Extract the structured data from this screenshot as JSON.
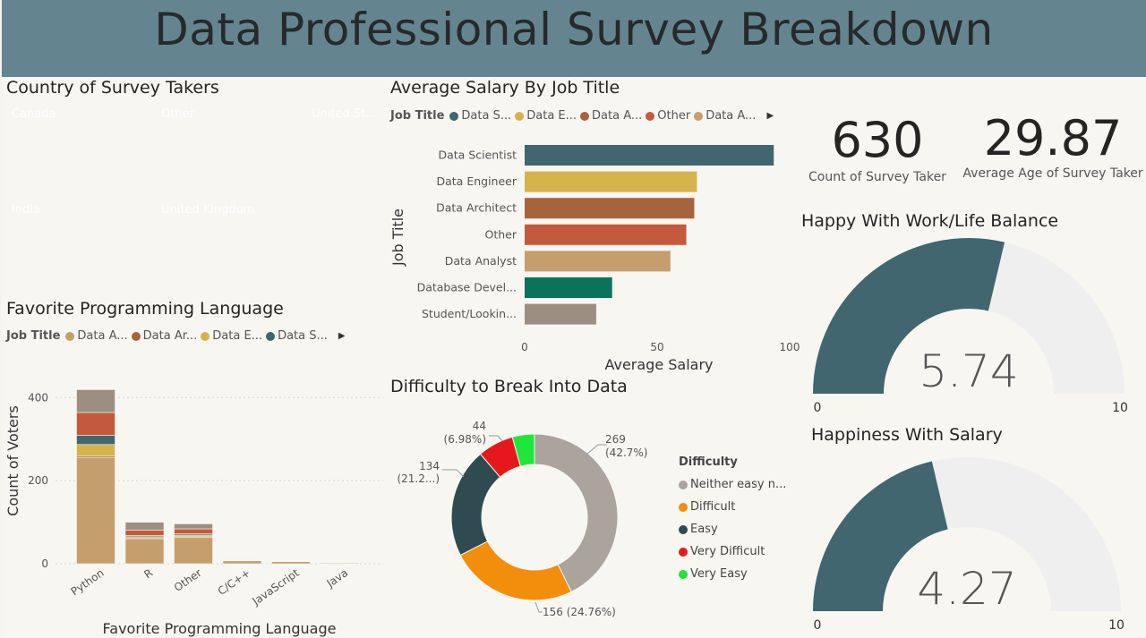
{
  "title": "Data Professional Survey Breakdown",
  "colors": {
    "header_bg": "#64858f",
    "data_scientist": "#41666f",
    "data_engineer": "#d4b34b",
    "data_architect": "#a6643e",
    "other": "#c45a3d",
    "data_analyst": "#c59e6e",
    "database_developer": "#0b7359",
    "student": "#9c8f82",
    "gauge_fill": "#41666f",
    "gauge_track": "#efefef"
  },
  "treemap": {
    "title": "Country of Survey Takers",
    "tiles": [
      {
        "label": "Canada",
        "color": "#41666f"
      },
      {
        "label": "Other",
        "color": "#a6643e"
      },
      {
        "label": "United St...",
        "color": "#c59e6e"
      },
      {
        "label": "India",
        "color": "#d4b34b"
      },
      {
        "label": "United Kingdom",
        "color": "#c45a3d"
      }
    ]
  },
  "salary_chart": {
    "title": "Average Salary By Job Title",
    "legend_title": "Job Title",
    "legend_items": [
      {
        "label": "Data S...",
        "color": "#41666f"
      },
      {
        "label": "Data E...",
        "color": "#d4b34b"
      },
      {
        "label": "Data A...",
        "color": "#a6643e"
      },
      {
        "label": "Other",
        "color": "#c45a3d"
      },
      {
        "label": "Data A...",
        "color": "#c59e6e"
      }
    ]
  },
  "language_chart": {
    "title": "Favorite Programming Language",
    "legend_title": "Job Title",
    "legend_items": [
      {
        "label": "Data A...",
        "color": "#c59e6e"
      },
      {
        "label": "Data Ar...",
        "color": "#a6643e"
      },
      {
        "label": "Data E...",
        "color": "#d4b34b"
      },
      {
        "label": "Data S...",
        "color": "#41666f"
      }
    ]
  },
  "difficulty_chart": {
    "title": "Difficulty to Break Into Data",
    "legend_title": "Difficulty",
    "legend_items": [
      {
        "label": "Neither easy n...",
        "color": "#aba39c"
      },
      {
        "label": "Difficult",
        "color": "#f28e0c"
      },
      {
        "label": "Easy",
        "color": "#2f4a51"
      },
      {
        "label": "Very Difficult",
        "color": "#e5191c"
      },
      {
        "label": "Very Easy",
        "color": "#1ee63a"
      }
    ]
  },
  "kpis": {
    "count": {
      "value": "630",
      "label": "Count of Survey Taker"
    },
    "age": {
      "value": "29.87",
      "label": "Average Age of Survey Taker"
    }
  },
  "gauges": {
    "worklife": {
      "title": "Happy With Work/Life Balance",
      "value": 5.74,
      "value_label": "5.74",
      "min_label": "0",
      "max_label": "10"
    },
    "salary": {
      "title": "Happiness With Salary",
      "value": 4.27,
      "value_label": "4.27",
      "min_label": "0",
      "max_label": "10"
    }
  },
  "chart_data": [
    {
      "type": "bar",
      "orientation": "horizontal",
      "title": "Average Salary By Job Title",
      "categories": [
        "Data Scientist",
        "Data Engineer",
        "Data Architect",
        "Other",
        "Data Analyst",
        "Database Devel...",
        "Student/Lookin..."
      ],
      "values": [
        94,
        65,
        64,
        61,
        55,
        33,
        27
      ],
      "colors": [
        "#41666f",
        "#d4b34b",
        "#a6643e",
        "#c45a3d",
        "#c59e6e",
        "#0b7359",
        "#9c8f82"
      ],
      "xlabel": "Average Salary",
      "ylabel": "Job Title",
      "xlim": [
        0,
        100
      ],
      "xticks": [
        "0",
        "50",
        "100"
      ]
    },
    {
      "type": "bar",
      "stacked": true,
      "title": "Favorite Programming Language",
      "categories": [
        "Python",
        "R",
        "Other",
        "C/C++",
        "JavaScript",
        "Java"
      ],
      "series": [
        {
          "name": "Data Analyst",
          "color": "#c59e6e",
          "values": [
            256,
            60,
            63,
            7,
            5,
            2
          ]
        },
        {
          "name": "Data Architect",
          "color": "#a6643e",
          "values": [
            3,
            2,
            2,
            0,
            0,
            0
          ]
        },
        {
          "name": "Data Engineer",
          "color": "#d4b34b",
          "values": [
            28,
            3,
            4,
            1,
            1,
            0
          ]
        },
        {
          "name": "Data Scientist",
          "color": "#41666f",
          "values": [
            22,
            3,
            3,
            0,
            0,
            0
          ]
        },
        {
          "name": "Other",
          "color": "#c45a3d",
          "values": [
            55,
            13,
            12,
            1,
            1,
            0
          ]
        },
        {
          "name": "Student/Looking",
          "color": "#9c8f82",
          "values": [
            55,
            19,
            12,
            1,
            0,
            1
          ]
        }
      ],
      "xlabel": "Favorite Programming Language",
      "ylabel": "Count of Voters",
      "ylim": [
        0,
        420
      ],
      "yticks": [
        0,
        200,
        400
      ]
    },
    {
      "type": "pie",
      "donut": true,
      "title": "Difficulty to Break Into Data",
      "categories": [
        "Neither easy nor difficult",
        "Difficult",
        "Easy",
        "Very Difficult",
        "Very Easy"
      ],
      "values": [
        269,
        156,
        134,
        44,
        27
      ],
      "colors": [
        "#aba39c",
        "#f28e0c",
        "#2f4a51",
        "#e5191c",
        "#1ee63a"
      ],
      "labels": [
        {
          "value": "269",
          "pct": "(42.7%)"
        },
        {
          "value": "156 (24.76%)",
          "pct": ""
        },
        {
          "value": "134",
          "pct": "(21.2...)"
        },
        {
          "value": "44",
          "pct": "(6.98%)"
        }
      ]
    }
  ]
}
